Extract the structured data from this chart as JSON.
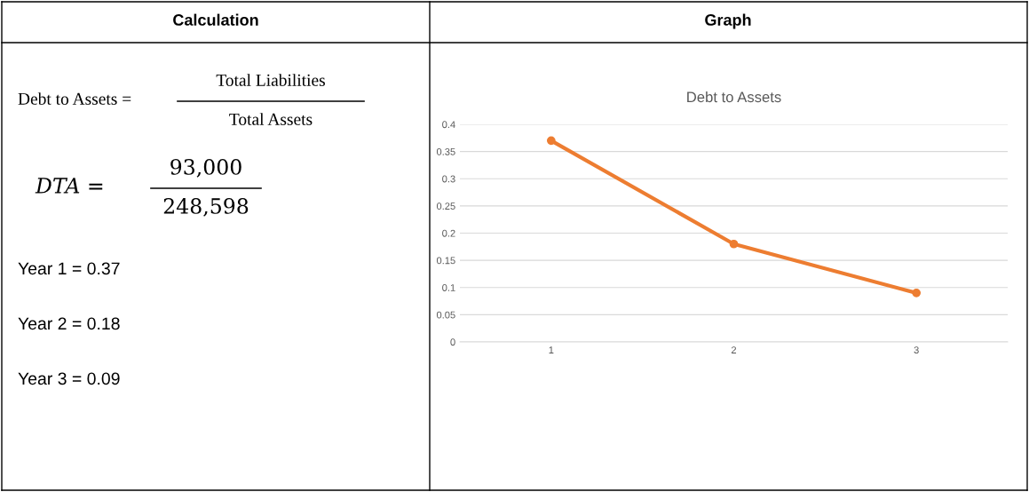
{
  "chart_data": {
    "type": "line",
    "title": "Debt to Assets",
    "categories": [
      "1",
      "2",
      "3"
    ],
    "series": [
      {
        "color": "#ed7d31",
        "values": [
          0.37,
          0.18,
          0.09
        ]
      }
    ],
    "ylim": [
      0,
      0.4
    ],
    "yticks": [
      0,
      0.05,
      0.1,
      0.15,
      0.2,
      0.25,
      0.3,
      0.35,
      0.4
    ],
    "grid": "y",
    "marker": "circle",
    "line_style": "solid",
    "legend": false,
    "annotations": [
      "Calculation",
      "Graph",
      "Debt to Assets =",
      "Total Liabilities",
      "Total Assets",
      "DTA =",
      "93,000",
      "248,598",
      "Year 1 = 0.37",
      "Year 2 = 0.18",
      "Year 3 = 0.09"
    ]
  }
}
